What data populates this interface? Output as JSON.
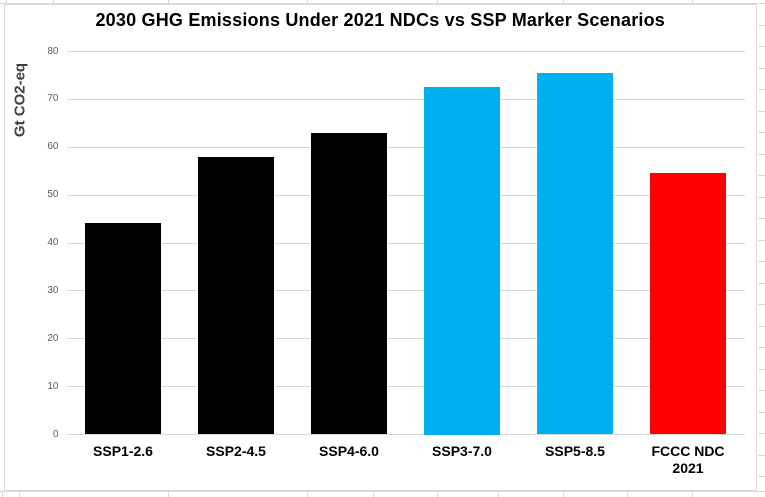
{
  "chart_data": {
    "type": "bar",
    "title": "2030 GHG Emissions Under 2021 NDCs vs SSP Marker Scenarios",
    "ylabel": "Gt CO2-eq",
    "xlabel": "",
    "categories": [
      "SSP1-2.6",
      "SSP2-4.5",
      "SSP4-6.0",
      "SSP3-7.0",
      "SSP5-8.5",
      "FCCC NDC 2021"
    ],
    "values": [
      44.1,
      57.9,
      62.9,
      72.5,
      75.6,
      54.7
    ],
    "bar_colors": [
      "#000000",
      "#000000",
      "#000000",
      "#00B0F0",
      "#00B0F0",
      "#FF0000"
    ],
    "ylim": [
      0,
      80
    ],
    "yticks": [
      0,
      10,
      20,
      30,
      40,
      50,
      60,
      70,
      80
    ],
    "grid": true,
    "legend": false,
    "colors": {
      "gridline": "#D9D9D9",
      "tick_label": "#595959",
      "axis_title": "#404040",
      "title": "#000000",
      "category_label": "#000000",
      "chart_background": "#FFFFFF",
      "chart_border": "#D9D9D9",
      "sheet_gridline": "#D9D9D9",
      "bar_black": "#000000",
      "bar_blue": "#00B0F0",
      "bar_red": "#FF0000"
    }
  }
}
